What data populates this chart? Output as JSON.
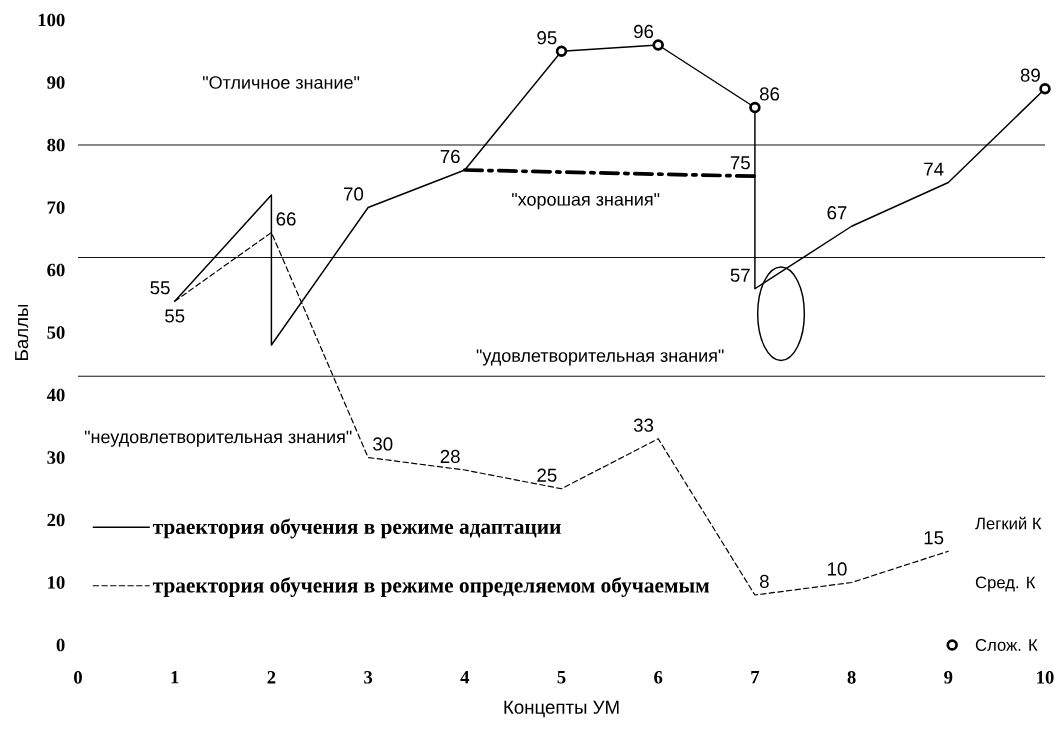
{
  "chart_data": {
    "type": "line",
    "xlabel": "Концепты УМ",
    "ylabel": "Баллы",
    "xlim": [
      0,
      10
    ],
    "xticks": [
      0,
      1,
      2,
      3,
      4,
      5,
      6,
      7,
      8,
      9,
      10
    ],
    "ylim": [
      0,
      100
    ],
    "yticks": [
      0,
      10,
      20,
      30,
      40,
      50,
      60,
      70,
      80,
      90,
      100
    ],
    "legend": "bottom left",
    "series": [
      {
        "name": "траектория обучения в режиме адаптации",
        "color": "#000000",
        "line_style": "solid",
        "marker": "none",
        "x": [
          1,
          2,
          2,
          3,
          4,
          5,
          6,
          7,
          7,
          8,
          9,
          10
        ],
        "values": [
          55,
          72,
          48,
          70,
          76,
          95,
          96,
          86,
          57,
          67,
          74,
          89
        ],
        "value_labels": [
          "55",
          null,
          null,
          "70",
          "76",
          "95",
          "96",
          "86",
          "57",
          "67",
          "74",
          "89"
        ]
      },
      {
        "name": "траектория обучения в режиме определяемом обучаемым",
        "color": "#000000",
        "line_style": "dashed",
        "marker": "none",
        "x": [
          1,
          2,
          3,
          4,
          5,
          6,
          7,
          8,
          9
        ],
        "values": [
          55,
          66,
          30,
          28,
          25,
          33,
          8,
          10,
          15
        ],
        "value_labels": [
          "55",
          "66",
          "30",
          "28",
          "25",
          "33",
          "8",
          "10",
          "15"
        ]
      },
      {
        "color": "#000000",
        "line_style": "dashdot",
        "marker": "none",
        "x": [
          4,
          7
        ],
        "values": [
          76,
          75
        ],
        "value_labels": [
          null,
          "75"
        ]
      },
      {
        "name": "Слож. К",
        "type": "scatter",
        "color": "#000000",
        "marker": "circle",
        "x": [
          5,
          6,
          7,
          10
        ],
        "values": [
          95,
          96,
          86,
          89
        ]
      }
    ],
    "ref_lines": [
      {
        "axis": "y",
        "value": 80
      },
      {
        "axis": "y",
        "value": 62
      },
      {
        "axis": "y",
        "value": 43
      }
    ],
    "annotations": [
      "\"Отличное знание\"",
      "\"хорошая знания\"",
      "\"удовлетворительная знания\"",
      "\"неудовлетворительная знания\"",
      "Легкий К",
      "Сред. К"
    ]
  }
}
